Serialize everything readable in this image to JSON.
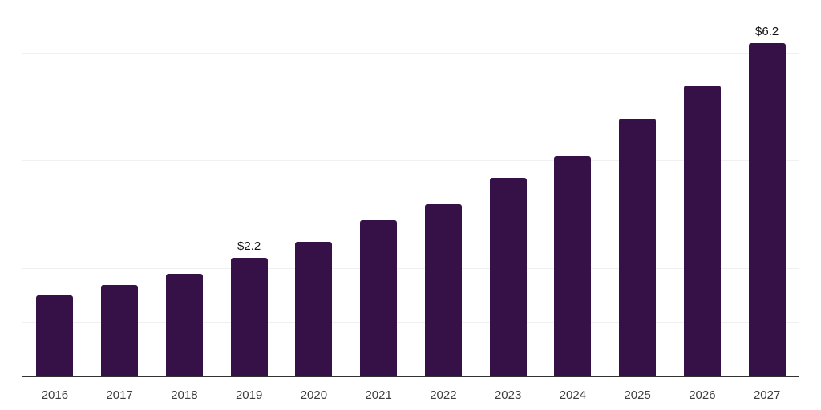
{
  "colors": {
    "bar": "#361148",
    "gridline": "#f0f0f2",
    "axis": "#333333",
    "tick_label": "#3d3d3d",
    "value_label": "#111111",
    "background": "#ffffff"
  },
  "chart_data": {
    "type": "bar",
    "categories": [
      "2016",
      "2017",
      "2018",
      "2019",
      "2020",
      "2021",
      "2022",
      "2023",
      "2024",
      "2025",
      "2026",
      "2027"
    ],
    "values": [
      1.5,
      1.7,
      1.9,
      2.2,
      2.5,
      2.9,
      3.2,
      3.7,
      4.1,
      4.8,
      5.4,
      6.2
    ],
    "annotations": [
      {
        "category": "2019",
        "text": "$2.2"
      },
      {
        "category": "2027",
        "text": "$6.2"
      }
    ],
    "title": "",
    "xlabel": "",
    "ylabel": "",
    "ylim": [
      0,
      7
    ],
    "gridline_values": [
      1,
      2,
      3,
      4,
      5,
      6,
      7
    ],
    "legend": "none",
    "y_axis_labels_visible": false
  }
}
